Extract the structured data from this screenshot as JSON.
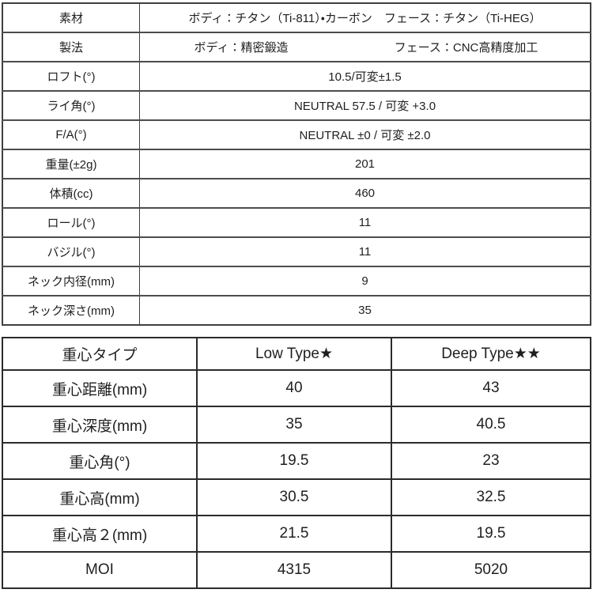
{
  "page": {
    "background_color": "#ffffff",
    "text_color": "#1f1f1f",
    "border_color": "#2b2b2b"
  },
  "spec_table": {
    "rows": [
      {
        "label": "素材",
        "value": "ボディ：チタン（Ti-811）・カーボン　フェース：チタン（Ti-HEG）"
      },
      {
        "label": "製法",
        "value_parts": [
          "ボディ：精密鍛造",
          "フェース：CNC高精度加工"
        ]
      },
      {
        "label": "ロフト(°)",
        "value": "10.5/可変±1.5"
      },
      {
        "label": "ライ角(°)",
        "value": "NEUTRAL 57.5 / 可変 +3.0"
      },
      {
        "label": "F/A(°)",
        "value": "NEUTRAL ±0 / 可変 ±2.0"
      },
      {
        "label": "重量(±2g)",
        "value": "201"
      },
      {
        "label": "体積(cc)",
        "value": "460"
      },
      {
        "label": "ロール(°)",
        "value": "11"
      },
      {
        "label": "バジル(°)",
        "value": "11"
      },
      {
        "label": "ネック内径(mm)",
        "value": "9"
      },
      {
        "label": "ネック深さ(mm)",
        "value": "35"
      }
    ]
  },
  "cg_table": {
    "header": [
      "重心タイプ",
      "Low Type★",
      "Deep Type★★"
    ],
    "rows": [
      {
        "label": "重心距離(mm)",
        "low": "40",
        "deep": "43"
      },
      {
        "label": "重心深度(mm)",
        "low": "35",
        "deep": "40.5"
      },
      {
        "label": "重心角(°)",
        "low": "19.5",
        "deep": "23"
      },
      {
        "label": "重心高(mm)",
        "low": "30.5",
        "deep": "32.5"
      },
      {
        "label": "重心高２(mm)",
        "low": "21.5",
        "deep": "19.5"
      },
      {
        "label": "MOI",
        "low": "4315",
        "deep": "5020"
      }
    ]
  }
}
